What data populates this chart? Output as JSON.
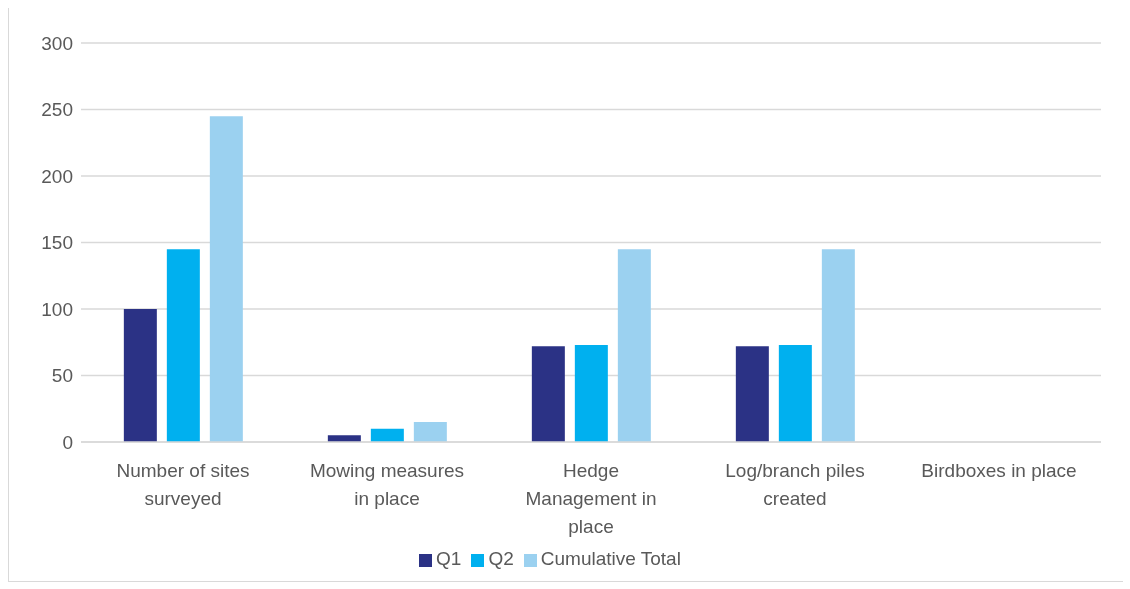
{
  "chart_data": {
    "type": "bar",
    "categories": [
      "Number of sites surveyed",
      "Mowing measures in place",
      "Hedge Management in place",
      "Log/branch piles created",
      "Birdboxes in place"
    ],
    "series": [
      {
        "name": "Q1",
        "color": "#2b3285",
        "values": [
          100,
          5,
          72,
          72,
          0
        ]
      },
      {
        "name": "Q2",
        "color": "#00b0ef",
        "values": [
          145,
          10,
          73,
          73,
          0
        ]
      },
      {
        "name": "Cumulative Total",
        "color": "#9bd1f0",
        "values": [
          245,
          15,
          145,
          145,
          0
        ]
      }
    ],
    "ylim": [
      0,
      300
    ],
    "yticks": [
      0,
      50,
      100,
      150,
      200,
      250,
      300
    ],
    "grid": "y",
    "legend": "bottom"
  }
}
